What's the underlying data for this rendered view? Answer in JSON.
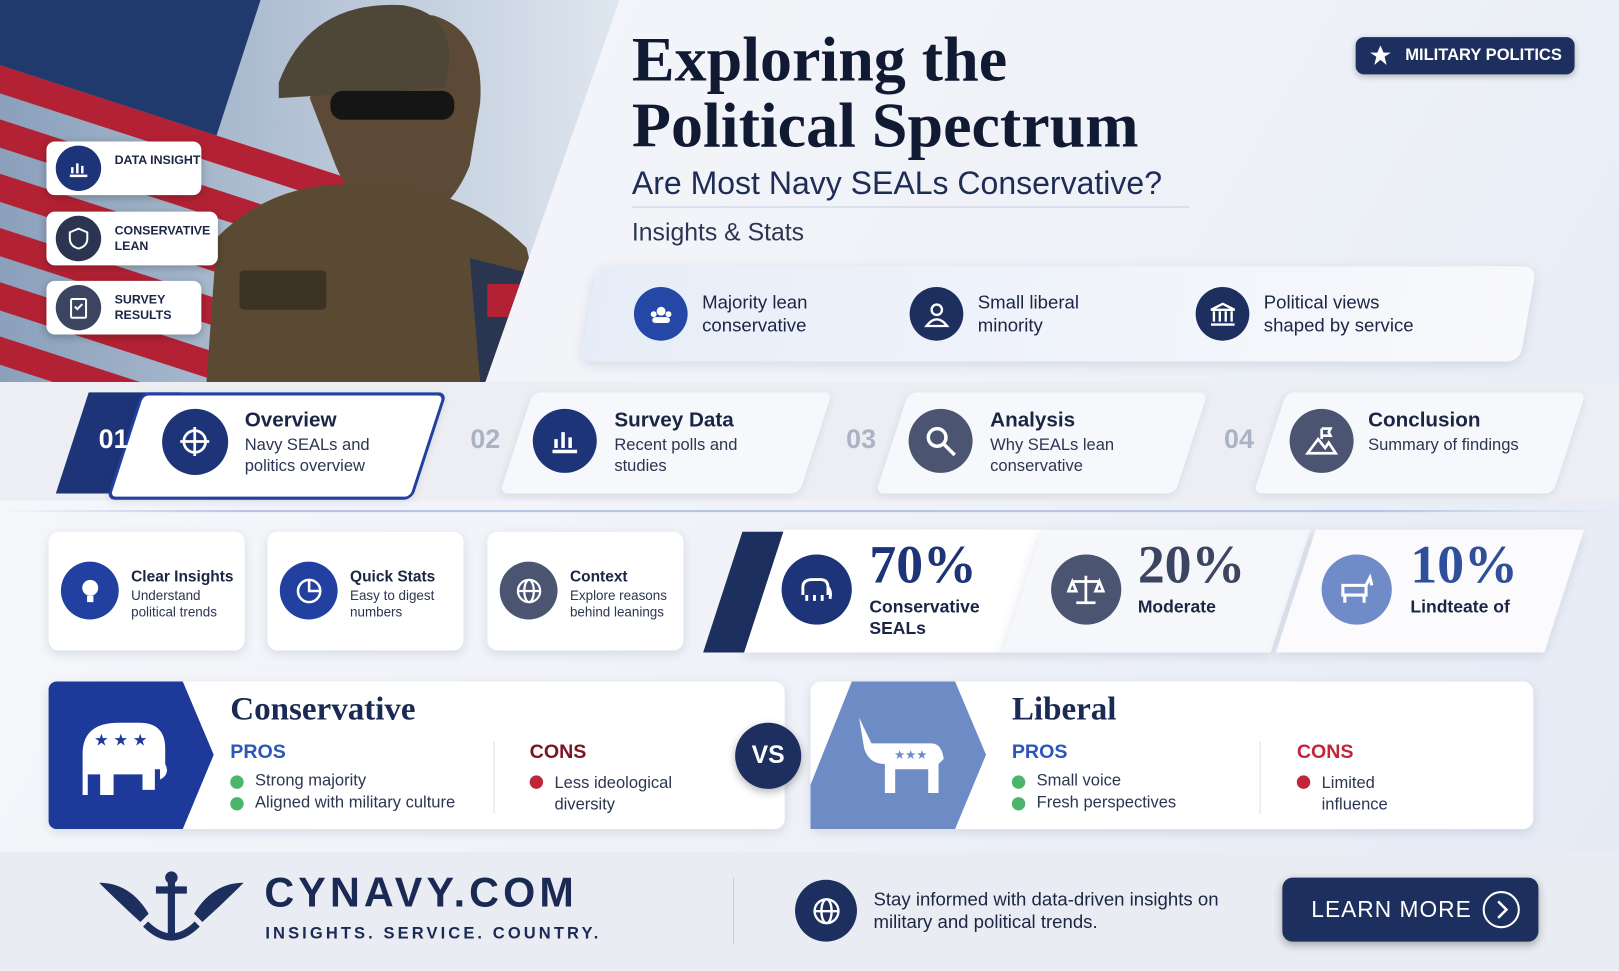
{
  "header": {
    "badge": "MILITARY POLITICS",
    "title_line1": "Exploring the",
    "title_line2": "Political Spectrum",
    "subtitle": "Are Most Navy SEALs Conservative?",
    "tagline": "Insights & Stats"
  },
  "side_tags": [
    "DATA INSIGHT",
    "CONSERVATIVE LEAN",
    "SURVEY RESULTS"
  ],
  "highlights": [
    "Majority lean conservative",
    "Small liberal minority",
    "Political views shaped by service"
  ],
  "steps": [
    {
      "number": "01",
      "title": "Overview",
      "description": "Navy SEALs and politics overview"
    },
    {
      "number": "02",
      "title": "Survey Data",
      "description": "Recent polls and studies"
    },
    {
      "number": "03",
      "title": "Analysis",
      "description": "Why SEALs lean conservative"
    },
    {
      "number": "04",
      "title": "Conclusion",
      "description": "Summary of findings"
    }
  ],
  "features": [
    {
      "title": "Clear Insights",
      "description": "Understand political trends"
    },
    {
      "title": "Quick Stats",
      "description": "Easy to digest numbers"
    },
    {
      "title": "Context",
      "description": "Explore reasons behind leanings"
    }
  ],
  "stats": [
    {
      "value": "70%",
      "label": "Conservative SEALs"
    },
    {
      "value": "20%",
      "label": "Moderate"
    },
    {
      "value": "10%",
      "label": "Lindteate of"
    }
  ],
  "comparison": {
    "conservative": {
      "title": "Conservative",
      "pros_label": "PROS",
      "pros": [
        "Strong majority",
        "Aligned with military culture"
      ],
      "cons_label": "CONS",
      "cons": [
        "Less ideological diversity"
      ]
    },
    "vs": "VS",
    "liberal": {
      "title": "Liberal",
      "pros_label": "PROS",
      "pros": [
        "Small voice",
        "Fresh perspectives"
      ],
      "cons_label": "CONS",
      "cons": [
        "Limited influence"
      ]
    }
  },
  "footer": {
    "brand": "CYNAVY.COM",
    "slogan": "INSIGHTS. SERVICE. COUNTRY.",
    "message": "Stay informed with data-driven insights on military and political trends.",
    "button": "LEARN MORE"
  }
}
